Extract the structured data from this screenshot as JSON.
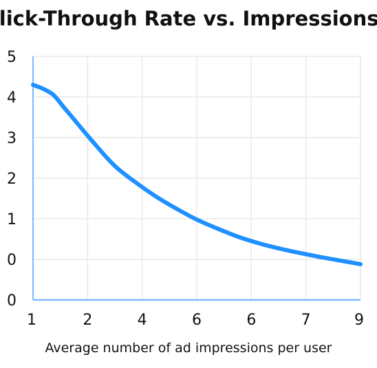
{
  "chart_data": {
    "type": "line",
    "title": "Click-Through Rate vs. Impressions",
    "xlabel": "Average number of ad impressions per user",
    "ylabel": "",
    "x_tick_labels": [
      "1",
      "2",
      "4",
      "6",
      "6",
      "7",
      "9"
    ],
    "y_tick_labels": [
      "0",
      "0",
      "1",
      "2",
      "3",
      "4",
      "5"
    ],
    "grid": true,
    "legend": "none",
    "colors": {
      "line": "#1e90ff",
      "axis": "#7fb8ff",
      "grid": "#e9e9e9",
      "text": "#111111"
    },
    "series": [
      {
        "x": [
          1,
          1.25,
          1.5,
          1.75,
          2,
          2.5,
          3,
          3.5,
          4,
          4.5,
          5,
          5.5,
          6,
          6.5,
          7,
          7.5,
          8,
          8.5,
          9
        ],
        "y": [
          4.3,
          4.2,
          4.05,
          3.75,
          3.45,
          2.85,
          2.3,
          1.9,
          1.55,
          1.25,
          0.98,
          0.76,
          0.56,
          0.4,
          0.27,
          0.16,
          0.06,
          -0.03,
          -0.12
        ]
      }
    ]
  }
}
